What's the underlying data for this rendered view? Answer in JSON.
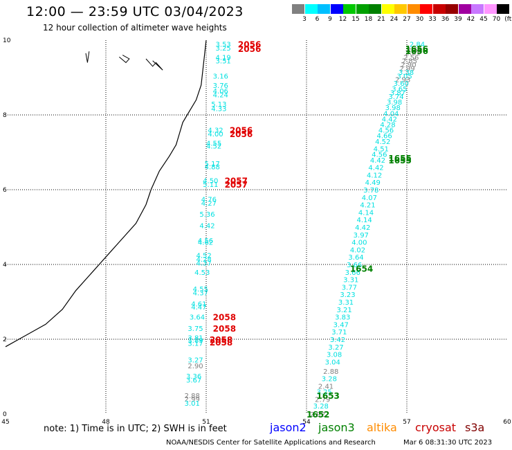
{
  "title": "12:00 — 23:59 UTC 03/04/2023",
  "subtitle": "12 hour collection of altimeter wave heights",
  "colorbar": {
    "colors": [
      "#808080",
      "#00ffff",
      "#00bfff",
      "#0000ff",
      "#00c800",
      "#00a000",
      "#008000",
      "#ffff00",
      "#ffc800",
      "#ff8c00",
      "#ff0000",
      "#c80000",
      "#960000",
      "#a000a0",
      "#c878ff",
      "#ff96ff",
      "#000000"
    ],
    "labels": [
      "3",
      "6",
      "9",
      "12",
      "15",
      "18",
      "21",
      "24",
      "27",
      "30",
      "33",
      "36",
      "39",
      "42",
      "45",
      "70"
    ],
    "unit": "(ft)"
  },
  "note": "note: 1) Time is in UTC; 2) SWH is in feet",
  "legend": [
    {
      "name": "jason2",
      "color": "#0000ff"
    },
    {
      "name": "jason3",
      "color": "#008000"
    },
    {
      "name": "altika",
      "color": "#ff8c00"
    },
    {
      "name": "cryosat",
      "color": "#c80000"
    },
    {
      "name": "s3a",
      "color": "#800000"
    }
  ],
  "footer_left": "NOAA/NESDIS Center for Satellite Applications and Research",
  "footer_right": "Mar  6 08:31:30 UTC 2023",
  "chart_data": {
    "type": "scatter",
    "x_ticks": [
      "45",
      "48",
      "51",
      "54",
      "57",
      "60"
    ],
    "y_ticks": [
      "0",
      "2",
      "4",
      "6",
      "8",
      "10"
    ],
    "xlim": [
      45,
      60
    ],
    "ylim": [
      0,
      10
    ],
    "grid": true,
    "coastline": [
      [
        51,
        10
      ],
      [
        50.95,
        9.6
      ],
      [
        50.9,
        9.2
      ],
      [
        50.85,
        8.8
      ],
      [
        50.7,
        8.4
      ],
      [
        50.5,
        8.1
      ],
      [
        50.3,
        7.8
      ],
      [
        50.2,
        7.5
      ],
      [
        50.1,
        7.2
      ],
      [
        49.9,
        6.9
      ],
      [
        49.6,
        6.5
      ],
      [
        49.35,
        6.0
      ],
      [
        49.2,
        5.6
      ],
      [
        48.9,
        5.1
      ],
      [
        48.4,
        4.6
      ],
      [
        48.1,
        4.3
      ],
      [
        47.6,
        3.8
      ],
      [
        47.1,
        3.3
      ],
      [
        46.7,
        2.8
      ],
      [
        46.2,
        2.4
      ],
      [
        45.6,
        2.1
      ],
      [
        45,
        1.8
      ]
    ],
    "islands": [
      [
        [
          47.4,
          9.65
        ],
        [
          47.45,
          9.4
        ],
        [
          47.5,
          9.7
        ]
      ],
      [
        [
          48.4,
          9.55
        ],
        [
          48.6,
          9.4
        ],
        [
          48.7,
          9.5
        ],
        [
          48.5,
          9.6
        ]
      ],
      [
        [
          49.2,
          9.5
        ],
        [
          49.4,
          9.3
        ],
        [
          49.5,
          9.4
        ],
        [
          49.7,
          9.2
        ],
        [
          49.4,
          9.45
        ]
      ]
    ],
    "series": [
      {
        "name": "jason3",
        "color": "#008000",
        "labels": [
          {
            "x": 56.95,
            "y": 9.78,
            "t": "1656"
          },
          {
            "x": 56.95,
            "y": 9.72,
            "t": "1656"
          },
          {
            "x": 56.45,
            "y": 6.85,
            "t": "1655"
          },
          {
            "x": 56.45,
            "y": 6.8,
            "t": "1655"
          },
          {
            "x": 55.3,
            "y": 3.9,
            "t": "1654"
          },
          {
            "x": 54.3,
            "y": 0.5,
            "t": "1653"
          },
          {
            "x": 54.0,
            "y": 0.0,
            "t": "1652"
          }
        ]
      },
      {
        "name": "cryosat",
        "color": "#e00000",
        "labels": [
          {
            "x": 51.95,
            "y": 9.9,
            "t": "2056"
          },
          {
            "x": 51.95,
            "y": 9.78,
            "t": "2056"
          },
          {
            "x": 51.7,
            "y": 7.6,
            "t": "2056"
          },
          {
            "x": 51.7,
            "y": 7.5,
            "t": "2056"
          },
          {
            "x": 51.55,
            "y": 6.25,
            "t": "2057"
          },
          {
            "x": 51.55,
            "y": 6.15,
            "t": "2057"
          },
          {
            "x": 51.2,
            "y": 2.6,
            "t": "2058"
          },
          {
            "x": 51.2,
            "y": 2.3,
            "t": "2058"
          },
          {
            "x": 51.1,
            "y": 2.0,
            "t": "2058"
          },
          {
            "x": 51.1,
            "y": 1.93,
            "t": "2058"
          }
        ]
      }
    ],
    "swh_track_1": [
      {
        "x": 51.28,
        "y": 9.9,
        "v": "3.53",
        "c": "#00e0e0"
      },
      {
        "x": 51.28,
        "y": 9.8,
        "v": "3.25",
        "c": "#00e0e0"
      },
      {
        "x": 51.28,
        "y": 9.55,
        "v": "4.19",
        "c": "#00e0e0"
      },
      {
        "x": 51.28,
        "y": 9.45,
        "v": "3.51",
        "c": "#00e0e0"
      },
      {
        "x": 51.2,
        "y": 9.05,
        "v": "3.16",
        "c": "#00e0e0"
      },
      {
        "x": 51.2,
        "y": 8.8,
        "v": "3.76",
        "c": "#00e0e0"
      },
      {
        "x": 51.2,
        "y": 8.65,
        "v": "4.06",
        "c": "#00e0e0"
      },
      {
        "x": 51.2,
        "y": 8.55,
        "v": "4.24",
        "c": "#00e0e0"
      },
      {
        "x": 51.15,
        "y": 8.3,
        "v": "5.13",
        "c": "#00e0e0"
      },
      {
        "x": 51.15,
        "y": 8.18,
        "v": "4.33",
        "c": "#00e0e0"
      },
      {
        "x": 51.05,
        "y": 7.6,
        "v": "4.32",
        "c": "#00e0e0"
      },
      {
        "x": 51.05,
        "y": 7.5,
        "v": "4.00",
        "c": "#00e0e0"
      },
      {
        "x": 51.0,
        "y": 7.25,
        "v": "4.55",
        "c": "#00e0e0"
      },
      {
        "x": 51.0,
        "y": 7.18,
        "v": "4.52",
        "c": "#00e0e0"
      },
      {
        "x": 50.95,
        "y": 6.7,
        "v": "5.17",
        "c": "#00e0e0"
      },
      {
        "x": 50.95,
        "y": 6.62,
        "v": "4.88",
        "c": "#00e0e0"
      },
      {
        "x": 50.9,
        "y": 6.25,
        "v": "4.50",
        "c": "#00e0e0"
      },
      {
        "x": 50.9,
        "y": 6.15,
        "v": "5.11",
        "c": "#00e0e0"
      },
      {
        "x": 50.85,
        "y": 5.75,
        "v": "4.76",
        "c": "#00e0e0"
      },
      {
        "x": 50.85,
        "y": 5.65,
        "v": "4.27",
        "c": "#00e0e0"
      },
      {
        "x": 50.8,
        "y": 5.35,
        "v": "5.36",
        "c": "#00e0e0"
      },
      {
        "x": 50.8,
        "y": 5.05,
        "v": "4.42",
        "c": "#00e0e0"
      },
      {
        "x": 50.75,
        "y": 4.65,
        "v": "4.56",
        "c": "#00e0e0"
      },
      {
        "x": 50.75,
        "y": 4.6,
        "v": "4.62",
        "c": "#00e0e0"
      },
      {
        "x": 50.7,
        "y": 4.25,
        "v": "4.52",
        "c": "#00e0e0"
      },
      {
        "x": 50.7,
        "y": 4.15,
        "v": "4.28",
        "c": "#00e0e0"
      },
      {
        "x": 50.7,
        "y": 4.05,
        "v": "4.37",
        "c": "#00e0e0"
      },
      {
        "x": 50.65,
        "y": 3.8,
        "v": "4.53",
        "c": "#00e0e0"
      },
      {
        "x": 50.6,
        "y": 3.35,
        "v": "4.55",
        "c": "#00e0e0"
      },
      {
        "x": 50.6,
        "y": 3.25,
        "v": "4.37",
        "c": "#00e0e0"
      },
      {
        "x": 50.55,
        "y": 2.95,
        "v": "4.61",
        "c": "#00e0e0"
      },
      {
        "x": 50.55,
        "y": 2.87,
        "v": "4.47",
        "c": "#00e0e0"
      },
      {
        "x": 50.5,
        "y": 2.6,
        "v": "3.64",
        "c": "#00e0e0"
      },
      {
        "x": 50.45,
        "y": 2.3,
        "v": "3.75",
        "c": "#00e0e0"
      },
      {
        "x": 50.45,
        "y": 2.05,
        "v": "3.81",
        "c": "#00e0e0"
      },
      {
        "x": 50.45,
        "y": 1.98,
        "v": "3.89",
        "c": "#00e0e0"
      },
      {
        "x": 50.45,
        "y": 1.9,
        "v": "3.17",
        "c": "#00e0e0"
      },
      {
        "x": 50.45,
        "y": 1.45,
        "v": "3.27",
        "c": "#00e0e0"
      },
      {
        "x": 50.45,
        "y": 1.3,
        "v": "2.90",
        "c": "#808080"
      },
      {
        "x": 50.4,
        "y": 1.02,
        "v": "3.36",
        "c": "#00e0e0"
      },
      {
        "x": 50.4,
        "y": 0.92,
        "v": "3.67",
        "c": "#00e0e0"
      },
      {
        "x": 50.35,
        "y": 0.5,
        "v": "2.88",
        "c": "#808080"
      },
      {
        "x": 50.35,
        "y": 0.41,
        "v": "2.99",
        "c": "#808080"
      },
      {
        "x": 50.35,
        "y": 0.3,
        "v": "3.01",
        "c": "#00e0e0"
      }
    ],
    "swh_track_2": [
      {
        "x": 57.08,
        "y": 9.9,
        "v": "2.84",
        "c": "#00e0e0"
      },
      {
        "x": 57.0,
        "y": 9.75,
        "v": "2.51",
        "c": "#808080"
      },
      {
        "x": 56.95,
        "y": 9.68,
        "v": "2.81",
        "c": "#808080"
      },
      {
        "x": 56.9,
        "y": 9.55,
        "v": "2.56",
        "c": "#808080"
      },
      {
        "x": 56.85,
        "y": 9.45,
        "v": "2.85",
        "c": "#808080"
      },
      {
        "x": 56.82,
        "y": 9.35,
        "v": "2.90",
        "c": "#808080"
      },
      {
        "x": 56.78,
        "y": 9.25,
        "v": "2.99",
        "c": "#808080"
      },
      {
        "x": 56.75,
        "y": 9.15,
        "v": "3.38",
        "c": "#00e0e0"
      },
      {
        "x": 56.7,
        "y": 9.05,
        "v": "3.05",
        "c": "#00e0e0"
      },
      {
        "x": 56.65,
        "y": 8.95,
        "v": "2.93",
        "c": "#808080"
      },
      {
        "x": 56.6,
        "y": 8.85,
        "v": "3.60",
        "c": "#00e0e0"
      },
      {
        "x": 56.55,
        "y": 8.7,
        "v": "3.65",
        "c": "#00e0e0"
      },
      {
        "x": 56.5,
        "y": 8.6,
        "v": "3.87",
        "c": "#00e0e0"
      },
      {
        "x": 56.45,
        "y": 8.5,
        "v": "3.74",
        "c": "#00e0e0"
      },
      {
        "x": 56.4,
        "y": 8.35,
        "v": "3.98",
        "c": "#00e0e0"
      },
      {
        "x": 56.35,
        "y": 8.2,
        "v": "3.98",
        "c": "#00e0e0"
      },
      {
        "x": 56.3,
        "y": 8.05,
        "v": "4.04",
        "c": "#00e0e0"
      },
      {
        "x": 56.25,
        "y": 7.9,
        "v": "4.42",
        "c": "#00e0e0"
      },
      {
        "x": 56.2,
        "y": 7.75,
        "v": "4.28",
        "c": "#00e0e0"
      },
      {
        "x": 56.15,
        "y": 7.6,
        "v": "4.56",
        "c": "#00e0e0"
      },
      {
        "x": 56.1,
        "y": 7.45,
        "v": "4.66",
        "c": "#00e0e0"
      },
      {
        "x": 56.05,
        "y": 7.3,
        "v": "4.52",
        "c": "#00e0e0"
      },
      {
        "x": 56.0,
        "y": 7.1,
        "v": "4.51",
        "c": "#00e0e0"
      },
      {
        "x": 55.95,
        "y": 6.95,
        "v": "4.56",
        "c": "#00e0e0"
      },
      {
        "x": 55.9,
        "y": 6.8,
        "v": "4.42",
        "c": "#00e0e0"
      },
      {
        "x": 55.85,
        "y": 6.6,
        "v": "4.42",
        "c": "#00e0e0"
      },
      {
        "x": 55.8,
        "y": 6.4,
        "v": "4.12",
        "c": "#00e0e0"
      },
      {
        "x": 55.75,
        "y": 6.2,
        "v": "4.49",
        "c": "#00e0e0"
      },
      {
        "x": 55.7,
        "y": 6.0,
        "v": "3.78",
        "c": "#00e0e0"
      },
      {
        "x": 55.65,
        "y": 5.8,
        "v": "4.07",
        "c": "#00e0e0"
      },
      {
        "x": 55.6,
        "y": 5.6,
        "v": "4.21",
        "c": "#00e0e0"
      },
      {
        "x": 55.55,
        "y": 5.4,
        "v": "4.14",
        "c": "#00e0e0"
      },
      {
        "x": 55.5,
        "y": 5.2,
        "v": "4.14",
        "c": "#00e0e0"
      },
      {
        "x": 55.45,
        "y": 5.0,
        "v": "4.42",
        "c": "#00e0e0"
      },
      {
        "x": 55.4,
        "y": 4.8,
        "v": "3.97",
        "c": "#00e0e0"
      },
      {
        "x": 55.35,
        "y": 4.6,
        "v": "4.00",
        "c": "#00e0e0"
      },
      {
        "x": 55.3,
        "y": 4.4,
        "v": "4.02",
        "c": "#00e0e0"
      },
      {
        "x": 55.25,
        "y": 4.2,
        "v": "3.64",
        "c": "#00e0e0"
      },
      {
        "x": 55.2,
        "y": 4.0,
        "v": "3.66",
        "c": "#00e0e0"
      },
      {
        "x": 55.15,
        "y": 3.8,
        "v": "3.66",
        "c": "#00e0e0"
      },
      {
        "x": 55.1,
        "y": 3.6,
        "v": "3.31",
        "c": "#00e0e0"
      },
      {
        "x": 55.05,
        "y": 3.4,
        "v": "3.77",
        "c": "#00e0e0"
      },
      {
        "x": 55.0,
        "y": 3.2,
        "v": "3.23",
        "c": "#00e0e0"
      },
      {
        "x": 54.95,
        "y": 3.0,
        "v": "3.31",
        "c": "#00e0e0"
      },
      {
        "x": 54.9,
        "y": 2.8,
        "v": "3.21",
        "c": "#00e0e0"
      },
      {
        "x": 54.85,
        "y": 2.6,
        "v": "3.83",
        "c": "#00e0e0"
      },
      {
        "x": 54.8,
        "y": 2.4,
        "v": "3.47",
        "c": "#00e0e0"
      },
      {
        "x": 54.75,
        "y": 2.2,
        "v": "3.71",
        "c": "#00e0e0"
      },
      {
        "x": 54.7,
        "y": 2.0,
        "v": "3.42",
        "c": "#00e0e0"
      },
      {
        "x": 54.65,
        "y": 1.8,
        "v": "3.27",
        "c": "#00e0e0"
      },
      {
        "x": 54.6,
        "y": 1.6,
        "v": "3.08",
        "c": "#00e0e0"
      },
      {
        "x": 54.55,
        "y": 1.4,
        "v": "3.04",
        "c": "#00e0e0"
      },
      {
        "x": 54.5,
        "y": 1.15,
        "v": "2.88",
        "c": "#808080"
      },
      {
        "x": 54.45,
        "y": 0.95,
        "v": "3.28",
        "c": "#00e0e0"
      },
      {
        "x": 54.35,
        "y": 0.75,
        "v": "2.41",
        "c": "#808080"
      },
      {
        "x": 54.3,
        "y": 0.6,
        "v": "3.25",
        "c": "#00e0e0"
      },
      {
        "x": 54.25,
        "y": 0.4,
        "v": "2.79",
        "c": "#808080"
      },
      {
        "x": 54.2,
        "y": 0.22,
        "v": "3.28",
        "c": "#00e0e0"
      },
      {
        "x": 54.1,
        "y": 0.0,
        "v": "2.92",
        "c": "#808080"
      }
    ]
  }
}
